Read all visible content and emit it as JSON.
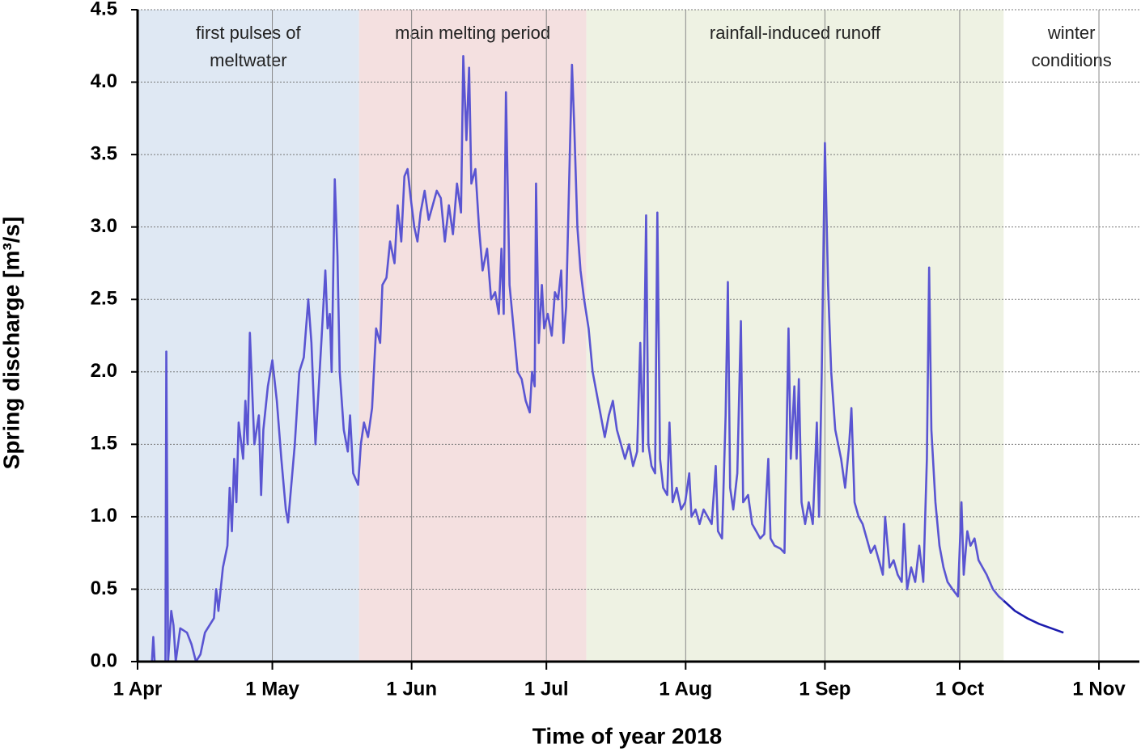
{
  "chart_data": {
    "type": "line",
    "xlabel": "Time of year 2018",
    "ylabel": "Spring discharge [m³/s]",
    "xlim": [
      0,
      223
    ],
    "ylim": [
      0,
      4.5
    ],
    "xticks": [
      {
        "value": 0,
        "label": "1 Apr"
      },
      {
        "value": 30,
        "label": "1 May"
      },
      {
        "value": 61,
        "label": "1 Jun"
      },
      {
        "value": 91,
        "label": "1 Jul"
      },
      {
        "value": 122,
        "label": "1 Aug"
      },
      {
        "value": 153,
        "label": "1 Sep"
      },
      {
        "value": 183,
        "label": "1 Oct"
      },
      {
        "value": 214,
        "label": "1 Nov"
      }
    ],
    "yticks": [
      {
        "value": 0,
        "label": "0.0"
      },
      0.5,
      {
        "value": 1,
        "label": "1.0"
      },
      1.5,
      {
        "value": 2,
        "label": "2.0"
      },
      2.5,
      {
        "value": 3,
        "label": "3.0"
      },
      3.5,
      {
        "value": 4,
        "label": "4.0"
      },
      4.5
    ],
    "grid": true,
    "regions": [
      {
        "label": [
          "first pulses of",
          "meltwater"
        ],
        "start": 0,
        "end": 49.3,
        "color": "#dfe8f3"
      },
      {
        "label": [
          "main melting period"
        ],
        "start": 49.3,
        "end": 99.9,
        "color": "#f4e0e0"
      },
      {
        "label": [
          "rainfall-induced runoff"
        ],
        "start": 99.9,
        "end": 192.8,
        "color": "#eef2e3"
      },
      {
        "label": [
          "winter",
          "conditions"
        ],
        "start": 192.8,
        "end": 223,
        "color": "#ffffff"
      }
    ],
    "series": [
      {
        "color": "#5a55d2",
        "x": [
          0,
          3.2,
          3.5,
          3.8,
          6.2,
          6.4,
          6.8,
          7.5,
          8,
          8.5,
          9.5,
          11,
          12,
          13,
          14,
          15,
          17,
          17.5,
          18,
          19,
          20,
          20.5,
          21,
          21.5,
          22,
          22.5,
          23.5,
          24,
          24.5,
          25,
          26,
          27,
          27.5,
          28,
          29,
          30,
          31,
          32,
          33,
          33.5,
          35,
          36,
          37,
          38,
          38.7,
          39.6,
          40.9,
          41.8,
          42.3,
          42.8,
          43.2,
          43.9,
          44.5,
          45,
          45.9,
          46.8,
          47.3,
          48,
          49.1,
          49.7,
          50.4,
          51.3,
          52.2,
          52.6,
          53.1,
          54,
          54.5,
          55.4,
          56.2,
          57.2,
          57.9,
          58.7,
          59.4,
          60.1,
          60.8,
          61.6,
          62.3,
          63,
          63.9,
          64.8,
          65.7,
          66.6,
          67.5,
          68.4,
          69.3,
          70.2,
          71.1,
          72,
          72.5,
          73.2,
          73.8,
          74.3,
          75.2,
          76,
          76.8,
          77.8,
          78.7,
          79.6,
          80.4,
          81,
          81.5,
          82,
          82.8,
          83.7,
          84.6,
          85.5,
          86.4,
          87.3,
          87.8,
          88.4,
          88.7,
          89.3,
          90,
          90.5,
          91.3,
          92.2,
          92.9,
          93.6,
          94.3,
          94.8,
          95.4,
          95.9,
          96.7,
          97.2,
          97.9,
          98.6,
          99.4,
          100.4,
          101.3,
          102.2,
          103.1,
          104,
          104.9,
          105.8,
          106.7,
          107.6,
          108.5,
          109.4,
          110.3,
          111.2,
          111.9,
          112.5,
          113.2,
          113.7,
          114.4,
          115.2,
          115.7,
          116.3,
          117,
          117.9,
          118.4,
          119.1,
          120,
          121,
          121.9,
          122.8,
          123.3,
          124.2,
          125.1,
          126,
          126.9,
          127.8,
          128.7,
          129.2,
          130.1,
          130.9,
          131.4,
          131.9,
          132.6,
          133.5,
          134.3,
          134.8,
          135.9,
          136.8,
          137.7,
          138.6,
          139.5,
          140.4,
          140.9,
          141.8,
          143.1,
          144,
          144.9,
          145.4,
          146.2,
          146.7,
          147.2,
          147.8,
          148.6,
          149.4,
          150.3,
          151.2,
          151.7,
          152.3,
          153,
          153.7,
          154.4,
          155.3,
          156.6,
          157.5,
          158.4,
          158.9,
          159.6,
          160.5,
          161.4,
          162.3,
          163.2,
          164.1,
          165,
          165.9,
          166.4,
          167.4,
          168.3,
          169.2,
          170.1,
          170.6,
          171.3,
          172.2,
          173.1,
          174,
          174.9,
          175.7,
          176.2,
          176.7,
          177.6,
          178.5,
          179.4,
          180.3,
          181.4,
          182.6,
          183.4,
          183.9,
          184.7,
          185.4,
          186.3,
          187.2,
          188.1,
          189,
          190.4,
          191.7,
          192.8
        ],
        "values": [
          0,
          0,
          0.17,
          0,
          0,
          2.14,
          0,
          0.35,
          0.25,
          0,
          0.23,
          0.2,
          0.12,
          0,
          0.05,
          0.2,
          0.3,
          0.5,
          0.35,
          0.65,
          0.8,
          1.2,
          0.9,
          1.4,
          1.1,
          1.65,
          1.4,
          1.8,
          1.5,
          2.27,
          1.5,
          1.7,
          1.15,
          1.6,
          1.9,
          2.08,
          1.8,
          1.4,
          1.05,
          0.96,
          1.5,
          2.0,
          2.1,
          2.5,
          2.2,
          1.5,
          2.2,
          2.7,
          2.3,
          2.4,
          2.0,
          3.33,
          2.8,
          2.0,
          1.6,
          1.45,
          1.7,
          1.3,
          1.22,
          1.5,
          1.65,
          1.55,
          1.75,
          2.0,
          2.3,
          2.2,
          2.6,
          2.65,
          2.9,
          2.75,
          3.15,
          2.9,
          3.35,
          3.4,
          3.2,
          3.0,
          2.9,
          3.1,
          3.25,
          3.05,
          3.15,
          3.25,
          3.2,
          2.9,
          3.15,
          2.95,
          3.3,
          3.1,
          4.18,
          3.6,
          4.1,
          3.3,
          3.4,
          3.0,
          2.7,
          2.85,
          2.5,
          2.55,
          2.4,
          2.85,
          2.4,
          3.93,
          2.6,
          2.3,
          2.0,
          1.95,
          1.8,
          1.72,
          2.0,
          1.9,
          3.3,
          2.2,
          2.6,
          2.3,
          2.4,
          2.25,
          2.55,
          2.5,
          2.7,
          2.2,
          2.45,
          3.1,
          4.12,
          3.7,
          3.0,
          2.7,
          2.5,
          2.3,
          2.0,
          1.85,
          1.7,
          1.55,
          1.7,
          1.8,
          1.6,
          1.5,
          1.4,
          1.5,
          1.35,
          1.45,
          2.2,
          1.45,
          3.08,
          1.5,
          1.35,
          1.3,
          3.1,
          1.4,
          1.2,
          1.15,
          1.65,
          1.1,
          1.2,
          1.05,
          1.1,
          1.3,
          1.0,
          1.05,
          0.95,
          1.05,
          1.0,
          0.95,
          1.35,
          0.9,
          0.85,
          1.7,
          2.62,
          1.2,
          1.05,
          1.3,
          2.35,
          1.1,
          1.15,
          0.95,
          0.9,
          0.85,
          0.88,
          1.4,
          0.85,
          0.8,
          0.78,
          0.75,
          2.3,
          1.4,
          1.9,
          1.4,
          1.95,
          1.1,
          0.95,
          1.1,
          0.95,
          1.65,
          1.0,
          2.0,
          3.58,
          2.6,
          2.0,
          1.6,
          1.4,
          1.2,
          1.5,
          1.75,
          1.1,
          1.0,
          0.95,
          0.85,
          0.75,
          0.8,
          0.7,
          0.6,
          1.0,
          0.65,
          0.7,
          0.6,
          0.55,
          0.95,
          0.5,
          0.65,
          0.55,
          0.8,
          0.55,
          1.4,
          2.72,
          1.6,
          1.1,
          0.8,
          0.65,
          0.55,
          0.5,
          0.45,
          1.1,
          0.6,
          0.9,
          0.8,
          0.85,
          0.7,
          0.65,
          0.6,
          0.5,
          0.45,
          0.42
        ]
      },
      {
        "color": "#1c1cae",
        "x": [
          192.8,
          195.3,
          198,
          200.7,
          203.4,
          206.1
        ],
        "values": [
          0.42,
          0.35,
          0.3,
          0.26,
          0.23,
          0.2
        ]
      }
    ]
  }
}
